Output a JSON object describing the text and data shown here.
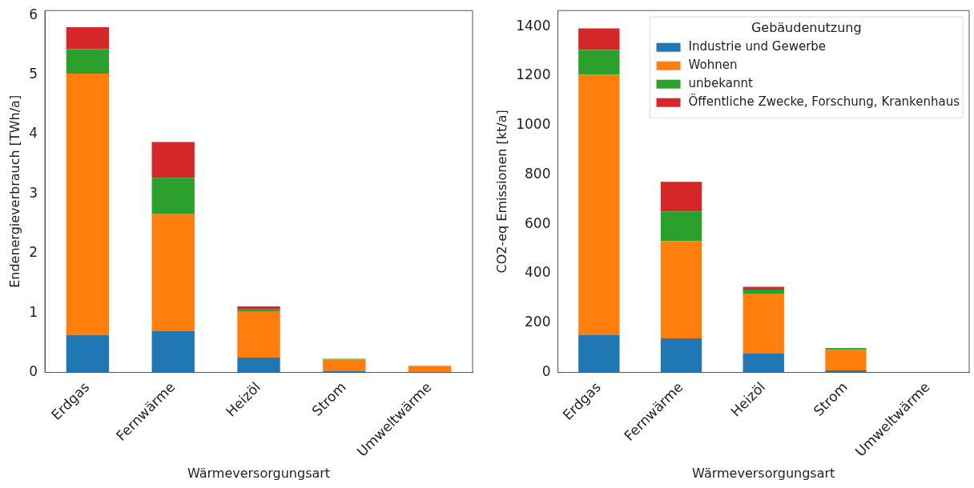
{
  "chart_data": [
    {
      "type": "bar",
      "stacked": true,
      "categories": [
        "Erdgas",
        "Fernwärme",
        "Heizöl",
        "Strom",
        "Umweltwärme"
      ],
      "xlabel": "Wärmeversorgungsart",
      "ylabel": "Endenergieverbrauch [TWh/a]",
      "ylim": [
        0,
        6.08
      ],
      "yticks": [
        0,
        1,
        2,
        3,
        4,
        5,
        6
      ],
      "grid": false,
      "legend": false,
      "series": [
        {
          "color": "#1f77b4",
          "values": [
            0.63,
            0.7,
            0.25,
            0.02,
            0
          ]
        },
        {
          "color": "#ff7f0e",
          "values": [
            4.39,
            1.97,
            0.77,
            0.2,
            0.11
          ]
        },
        {
          "color": "#2ca02c",
          "values": [
            0.41,
            0.6,
            0.04,
            0.01,
            0
          ]
        },
        {
          "color": "#d62728",
          "values": [
            0.37,
            0.6,
            0.05,
            0,
            0
          ]
        }
      ]
    },
    {
      "type": "bar",
      "stacked": true,
      "categories": [
        "Erdgas",
        "Fernwärme",
        "Heizöl",
        "Strom",
        "Umweltwärme"
      ],
      "xlabel": "Wärmeversorgungsart",
      "ylabel": "CO2-eq Emissionen [kt/a]",
      "ylim": [
        0,
        1465
      ],
      "yticks": [
        0,
        200,
        400,
        600,
        800,
        1000,
        1200,
        1400
      ],
      "grid": false,
      "legend": "top right",
      "legend_title": "Gebäudenutzung",
      "series": [
        {
          "name": "Industrie und Gewerbe",
          "color": "#1f77b4",
          "values": [
            152,
            138,
            78,
            8,
            0
          ]
        },
        {
          "name": "Wohnen",
          "color": "#ff7f0e",
          "values": [
            1053,
            394,
            239,
            84,
            0
          ]
        },
        {
          "name": "unbekannt",
          "color": "#2ca02c",
          "values": [
            100,
            120,
            18,
            4,
            0
          ]
        },
        {
          "name": "Öffentliche Zwecke, Forschung, Krankenhaus",
          "color": "#d62728",
          "values": [
            88,
            120,
            12,
            2,
            0
          ]
        }
      ]
    }
  ]
}
